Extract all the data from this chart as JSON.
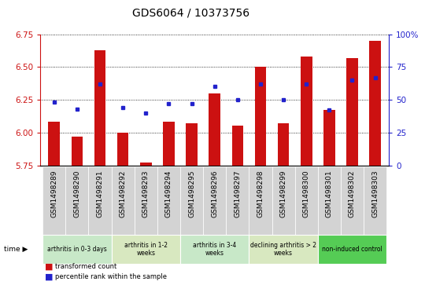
{
  "title": "GDS6064 / 10373756",
  "samples": [
    "GSM1498289",
    "GSM1498290",
    "GSM1498291",
    "GSM1498292",
    "GSM1498293",
    "GSM1498294",
    "GSM1498295",
    "GSM1498296",
    "GSM1498297",
    "GSM1498298",
    "GSM1498299",
    "GSM1498300",
    "GSM1498301",
    "GSM1498302",
    "GSM1498303"
  ],
  "bar_values": [
    6.08,
    5.97,
    6.63,
    6.0,
    5.77,
    6.08,
    6.07,
    6.3,
    6.05,
    6.5,
    6.07,
    6.58,
    6.17,
    6.57,
    6.7
  ],
  "dot_values": [
    48,
    43,
    62,
    44,
    40,
    47,
    47,
    60,
    50,
    62,
    50,
    62,
    42,
    65,
    67
  ],
  "ylim_left": [
    5.75,
    6.75
  ],
  "ylim_right": [
    0,
    100
  ],
  "yticks_left": [
    5.75,
    6.0,
    6.25,
    6.5,
    6.75
  ],
  "yticks_right": [
    0,
    25,
    50,
    75,
    100
  ],
  "ytick_labels_right": [
    "0",
    "25",
    "50",
    "75",
    "100%"
  ],
  "bar_color": "#cc1111",
  "dot_color": "#2222cc",
  "bar_base": 5.75,
  "groups": [
    {
      "label": "arthritis in 0-3 days",
      "start": 0,
      "end": 3,
      "color": "#c8e8c8"
    },
    {
      "label": "arthritis in 1-2\nweeks",
      "start": 3,
      "end": 6,
      "color": "#d8e8c0"
    },
    {
      "label": "arthritis in 3-4\nweeks",
      "start": 6,
      "end": 9,
      "color": "#c8e8c8"
    },
    {
      "label": "declining arthritis > 2\nweeks",
      "start": 9,
      "end": 12,
      "color": "#d8e8c0"
    },
    {
      "label": "non-induced control",
      "start": 12,
      "end": 15,
      "color": "#55cc55"
    }
  ],
  "legend_bar_label": "transformed count",
  "legend_dot_label": "percentile rank within the sample",
  "tick_fontsize": 6.5,
  "axis_color_left": "#cc1111",
  "axis_color_right": "#2222cc",
  "sample_bg_color": "#d3d3d3",
  "sample_bg_alt": "#c0c0c0"
}
